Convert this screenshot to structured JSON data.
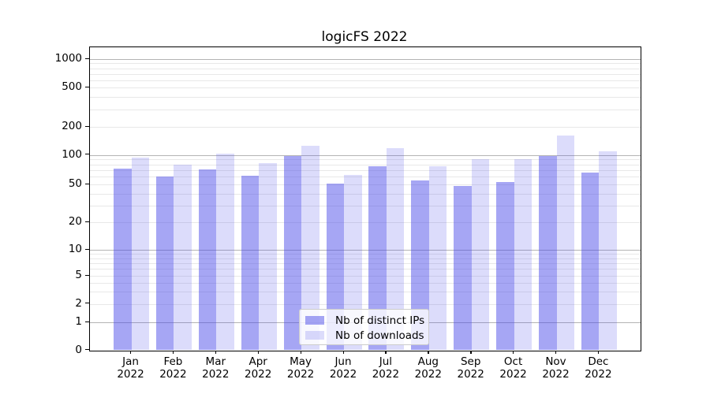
{
  "chart_data": {
    "type": "bar",
    "title": "logicFS 2022",
    "categories": [
      "Jan\n2022",
      "Feb\n2022",
      "Mar\n2022",
      "Apr\n2022",
      "May\n2022",
      "Jun\n2022",
      "Jul\n2022",
      "Aug\n2022",
      "Sep\n2022",
      "Oct\n2022",
      "Nov\n2022",
      "Dec\n2022"
    ],
    "series": [
      {
        "name": "Nb of distinct IPs",
        "color": "rgba(70,70,233,0.48)",
        "values": [
          73,
          60,
          71,
          61,
          98,
          51,
          76,
          55,
          48,
          53,
          97,
          66
        ]
      },
      {
        "name": "Nb of downloads",
        "color": "rgba(70,70,233,0.19)",
        "values": [
          94,
          80,
          102,
          82,
          124,
          62,
          118,
          76,
          90,
          91,
          160,
          110
        ]
      }
    ],
    "xlabel": "",
    "ylabel": "",
    "y_scale": "symlog",
    "ylim": [
      0,
      1300
    ],
    "y_ticks": [
      0,
      1,
      2,
      5,
      10,
      20,
      50,
      100,
      200,
      500,
      1000
    ],
    "y_major_gridlines": [
      1,
      10,
      100,
      1000
    ],
    "y_minor_gridlines": [
      2,
      3,
      4,
      5,
      6,
      7,
      8,
      9,
      20,
      30,
      40,
      50,
      60,
      70,
      80,
      90,
      200,
      300,
      400,
      500,
      600,
      700,
      800,
      900
    ],
    "grid": "on",
    "legend_position": "lower center"
  }
}
